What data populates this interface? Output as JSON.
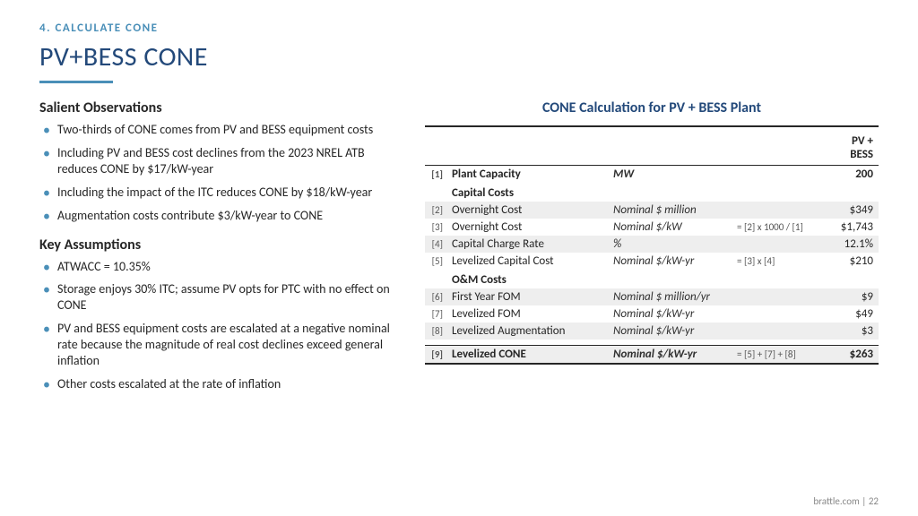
{
  "section_label": "4. CALCULATE CONE",
  "title": "PV+BESS CONE",
  "observations_heading": "Salient Observations",
  "observations": [
    "Two-thirds of CONE comes from PV and BESS equipment costs",
    "Including PV and BESS cost declines from the 2023 NREL ATB reduces CONE by $17/kW-year",
    "Including the impact of the ITC reduces CONE by $18/kW-year",
    "Augmentation costs contribute $3/kW-year to CONE"
  ],
  "assumptions_heading": "Key Assumptions",
  "assumptions": [
    "ATWACC = 10.35%",
    "Storage enjoys 30% ITC; assume PV opts for PTC with no effect on CONE",
    "PV and BESS equipment costs are escalated at a negative nominal rate because the magnitude of real cost declines exceed general inflation",
    "Other costs escalated at the rate of inflation"
  ],
  "table_title": "CONE Calculation for PV + BESS Plant",
  "col_header": "PV + BESS",
  "rows": {
    "r1": {
      "idx": "[1]",
      "desc": "Plant Capacity",
      "unit": "MW",
      "formula": "",
      "val": "200"
    },
    "cap_hdr": {
      "desc": "Capital Costs"
    },
    "r2": {
      "idx": "[2]",
      "desc": "Overnight Cost",
      "unit": "Nominal $ million",
      "formula": "",
      "val": "$349"
    },
    "r3": {
      "idx": "[3]",
      "desc": "Overnight Cost",
      "unit": "Nominal $/kW",
      "formula": "= [2] x 1000 / [1]",
      "val": "$1,743"
    },
    "r4": {
      "idx": "[4]",
      "desc": "Capital Charge Rate",
      "unit": "%",
      "formula": "",
      "val": "12.1%"
    },
    "r5": {
      "idx": "[5]",
      "desc": "Levelized Capital Cost",
      "unit": "Nominal $/kW-yr",
      "formula": "= [3] x [4]",
      "val": "$210"
    },
    "om_hdr": {
      "desc": "O&M Costs"
    },
    "r6": {
      "idx": "[6]",
      "desc": "First Year FOM",
      "unit": "Nominal $ million/yr",
      "formula": "",
      "val": "$9"
    },
    "r7": {
      "idx": "[7]",
      "desc": "Levelized FOM",
      "unit": "Nominal $/kW-yr",
      "formula": "",
      "val": "$49"
    },
    "r8": {
      "idx": "[8]",
      "desc": "Levelized Augmentation",
      "unit": "Nominal $/kW-yr",
      "formula": "",
      "val": "$3"
    },
    "r9": {
      "idx": "[9]",
      "desc": "Levelized CONE",
      "unit": "Nominal $/kW-yr",
      "formula": "= [5] + [7] + [8]",
      "val": "$263"
    }
  },
  "footer": "brattle.com | 22"
}
